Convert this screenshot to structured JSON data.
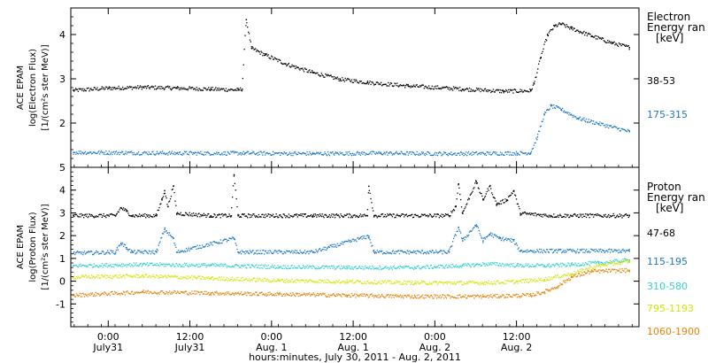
{
  "chart_data": [
    {
      "type": "scatter",
      "panel": "electron",
      "ylabel_lines": [
        "ACE EPAM",
        "log(Electron Flux)",
        "[1/(cm²s ster MeV)]"
      ],
      "legend_title": [
        "Electron",
        "Energy ran",
        "[keV]"
      ],
      "ylim": [
        1,
        4.6
      ],
      "yticks": [
        2,
        3,
        4
      ],
      "xlim": [
        -5.5,
        78
      ],
      "grid": false,
      "series": [
        {
          "name": "38-53",
          "color": "#000000",
          "points": [
            [
              -5.2,
              2.75
            ],
            [
              0,
              2.8
            ],
            [
              5,
              2.82
            ],
            [
              10,
              2.8
            ],
            [
              15,
              2.78
            ],
            [
              19,
              2.76
            ],
            [
              19.6,
              2.78
            ],
            [
              20.2,
              4.35
            ],
            [
              21,
              3.7
            ],
            [
              23,
              3.55
            ],
            [
              26,
              3.35
            ],
            [
              30,
              3.15
            ],
            [
              34,
              3.0
            ],
            [
              38,
              2.93
            ],
            [
              44,
              2.85
            ],
            [
              52,
              2.78
            ],
            [
              58,
              2.73
            ],
            [
              62,
              2.74
            ],
            [
              62.5,
              2.9
            ],
            [
              63.5,
              3.5
            ],
            [
              64.5,
              4.0
            ],
            [
              65.5,
              4.2
            ],
            [
              66.5,
              4.25
            ],
            [
              68,
              4.15
            ],
            [
              71,
              3.98
            ],
            [
              74,
              3.82
            ],
            [
              76.5,
              3.72
            ]
          ]
        },
        {
          "name": "175-315",
          "color": "#1e78c8",
          "points": [
            [
              -5.2,
              1.35
            ],
            [
              10,
              1.33
            ],
            [
              20,
              1.33
            ],
            [
              30,
              1.32
            ],
            [
              40,
              1.33
            ],
            [
              50,
              1.32
            ],
            [
              60,
              1.33
            ],
            [
              62,
              1.34
            ],
            [
              63,
              1.7
            ],
            [
              64,
              2.2
            ],
            [
              65,
              2.4
            ],
            [
              66.5,
              2.32
            ],
            [
              69,
              2.12
            ],
            [
              72,
              2.0
            ],
            [
              76.5,
              1.82
            ]
          ]
        }
      ]
    },
    {
      "type": "scatter",
      "panel": "proton",
      "ylabel_lines": [
        "ACE EPAM",
        "log(Proton Flux)",
        "[1/(cm²s ster MeV)]"
      ],
      "legend_title": [
        "Proton",
        "Energy ran",
        "[keV]"
      ],
      "ylim": [
        -2,
        5
      ],
      "yticks": [
        -1,
        0,
        1,
        2,
        3,
        4,
        5
      ],
      "xlim": [
        -5.5,
        78
      ],
      "grid": false,
      "series": [
        {
          "name": "47-68",
          "color": "#000000",
          "points": [
            [
              -5.2,
              2.9
            ],
            [
              1,
              2.9
            ],
            [
              1.8,
              3.25
            ],
            [
              2.6,
              3.1
            ],
            [
              3.4,
              2.9
            ],
            [
              7,
              2.9
            ],
            [
              7.8,
              3.6
            ],
            [
              8.2,
              4.0
            ],
            [
              8.7,
              3.3
            ],
            [
              9.5,
              4.2
            ],
            [
              10,
              3.0
            ],
            [
              15,
              2.9
            ],
            [
              18,
              2.9
            ],
            [
              18.4,
              4.7
            ],
            [
              19,
              2.9
            ],
            [
              30,
              2.9
            ],
            [
              38,
              2.9
            ],
            [
              38.2,
              4.2
            ],
            [
              39,
              2.9
            ],
            [
              50,
              2.9
            ],
            [
              51,
              3.3
            ],
            [
              51.4,
              4.3
            ],
            [
              52,
              3.0
            ],
            [
              54,
              4.4
            ],
            [
              55,
              3.6
            ],
            [
              56,
              4.2
            ],
            [
              57,
              3.4
            ],
            [
              58.5,
              3.6
            ],
            [
              59.5,
              4.0
            ],
            [
              60.5,
              3.0
            ],
            [
              65,
              2.9
            ],
            [
              76.5,
              2.9
            ]
          ]
        },
        {
          "name": "115-195",
          "color": "#1e78c8",
          "points": [
            [
              -5.2,
              1.25
            ],
            [
              1,
              1.3
            ],
            [
              1.8,
              1.7
            ],
            [
              2.6,
              1.5
            ],
            [
              3.4,
              1.3
            ],
            [
              7,
              1.3
            ],
            [
              8.2,
              2.3
            ],
            [
              9.5,
              1.9
            ],
            [
              10,
              1.3
            ],
            [
              18.4,
              1.9
            ],
            [
              19,
              1.3
            ],
            [
              30,
              1.3
            ],
            [
              38.2,
              2.0
            ],
            [
              39,
              1.3
            ],
            [
              50,
              1.3
            ],
            [
              51.4,
              2.4
            ],
            [
              52,
              1.8
            ],
            [
              54,
              2.5
            ],
            [
              55,
              1.8
            ],
            [
              56,
              2.1
            ],
            [
              57.5,
              1.9
            ],
            [
              59.5,
              1.8
            ],
            [
              60.5,
              1.35
            ],
            [
              76.5,
              1.35
            ]
          ]
        },
        {
          "name": "310-580",
          "color": "#30d2d2",
          "points": [
            [
              -5.2,
              0.7
            ],
            [
              5,
              0.75
            ],
            [
              15,
              0.72
            ],
            [
              25,
              0.65
            ],
            [
              35,
              0.62
            ],
            [
              45,
              0.62
            ],
            [
              52,
              0.7
            ],
            [
              56,
              0.78
            ],
            [
              60,
              0.72
            ],
            [
              64,
              0.7
            ],
            [
              68,
              0.75
            ],
            [
              72,
              0.82
            ],
            [
              76.5,
              0.95
            ]
          ]
        },
        {
          "name": "795-1193",
          "color": "#d2e60a",
          "points": [
            [
              -5.2,
              0.2
            ],
            [
              5,
              0.25
            ],
            [
              15,
              0.15
            ],
            [
              25,
              0.05
            ],
            [
              35,
              0.0
            ],
            [
              45,
              -0.05
            ],
            [
              55,
              -0.05
            ],
            [
              60,
              0.0
            ],
            [
              64,
              0.1
            ],
            [
              68,
              0.35
            ],
            [
              72,
              0.7
            ],
            [
              76.5,
              0.9
            ]
          ]
        },
        {
          "name": "1060-1900",
          "color": "#e8820a",
          "points": [
            [
              -5.2,
              -0.6
            ],
            [
              5,
              -0.45
            ],
            [
              15,
              -0.5
            ],
            [
              25,
              -0.55
            ],
            [
              35,
              -0.6
            ],
            [
              45,
              -0.65
            ],
            [
              55,
              -0.65
            ],
            [
              62,
              -0.6
            ],
            [
              64,
              -0.45
            ],
            [
              66,
              -0.2
            ],
            [
              68,
              0.2
            ],
            [
              71,
              0.45
            ],
            [
              76.5,
              0.5
            ]
          ]
        }
      ]
    }
  ],
  "x_axis": {
    "ticks": [
      {
        "x": 0,
        "time": "0:00",
        "day": "July31"
      },
      {
        "x": 12,
        "time": "12:00",
        "day": "July31"
      },
      {
        "x": 24,
        "time": "0:00",
        "day": "Aug. 1"
      },
      {
        "x": 36,
        "time": "12:00",
        "day": "Aug. 1"
      },
      {
        "x": 48,
        "time": "0:00",
        "day": "Aug. 2"
      },
      {
        "x": 60,
        "time": "12:00",
        "day": "Aug. 2"
      }
    ],
    "xlabel": "hours:minutes, July 30, 2011 - Aug.  2, 2011"
  }
}
